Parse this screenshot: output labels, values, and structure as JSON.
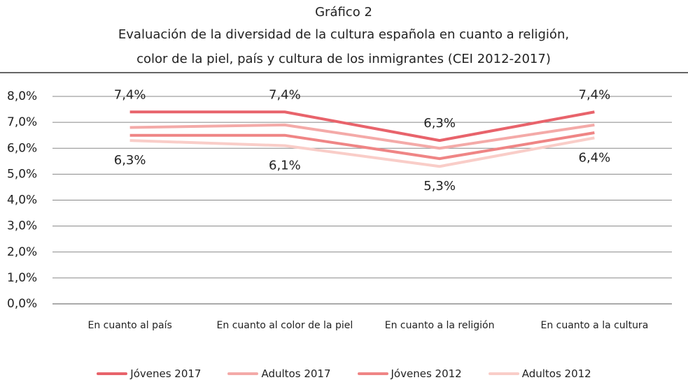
{
  "chart_data": {
    "type": "line",
    "title": "Gráfico 2",
    "subtitle": [
      "Evaluación de la diversidad de la cultura española en cuanto a religión,",
      "color de la piel, país y cultura de los inmigrantes (CEI 2012-2017)"
    ],
    "categories": [
      "En cuanto al país",
      "En cuanto al color de la piel",
      "En cuanto a la religión",
      "En cuanto a la cultura"
    ],
    "series": [
      {
        "name": "Jóvenes 2017",
        "color": "#e8636b",
        "values": [
          7.4,
          7.4,
          6.3,
          7.4
        ],
        "value_labels": [
          "7,4%",
          "7,4%",
          "6,3%",
          "7,4%"
        ]
      },
      {
        "name": "Adultos 2017",
        "color": "#f4aaa8",
        "values": [
          6.8,
          6.9,
          6.0,
          6.9
        ]
      },
      {
        "name": "Jóvenes 2012",
        "color": "#ef8585",
        "values": [
          6.5,
          6.5,
          5.6,
          6.6
        ]
      },
      {
        "name": "Adultos 2012",
        "color": "#f9cdc8",
        "values": [
          6.3,
          6.1,
          5.3,
          6.4
        ],
        "value_labels": [
          "6,3%",
          "6,1%",
          "5,3%",
          "6,4%"
        ]
      }
    ],
    "ylim": [
      0,
      8
    ],
    "yticks": [
      {
        "value": 0,
        "label": "0,0%"
      },
      {
        "value": 1,
        "label": "1,0%"
      },
      {
        "value": 2,
        "label": "2,0%"
      },
      {
        "value": 3,
        "label": "3,0%"
      },
      {
        "value": 4,
        "label": "4,0%"
      },
      {
        "value": 5,
        "label": "5,0%"
      },
      {
        "value": 6,
        "label": "6,0%"
      },
      {
        "value": 7,
        "label": "7,0%"
      },
      {
        "value": 8,
        "label": "8,0%"
      }
    ],
    "grid": true,
    "legend": "bottom"
  }
}
